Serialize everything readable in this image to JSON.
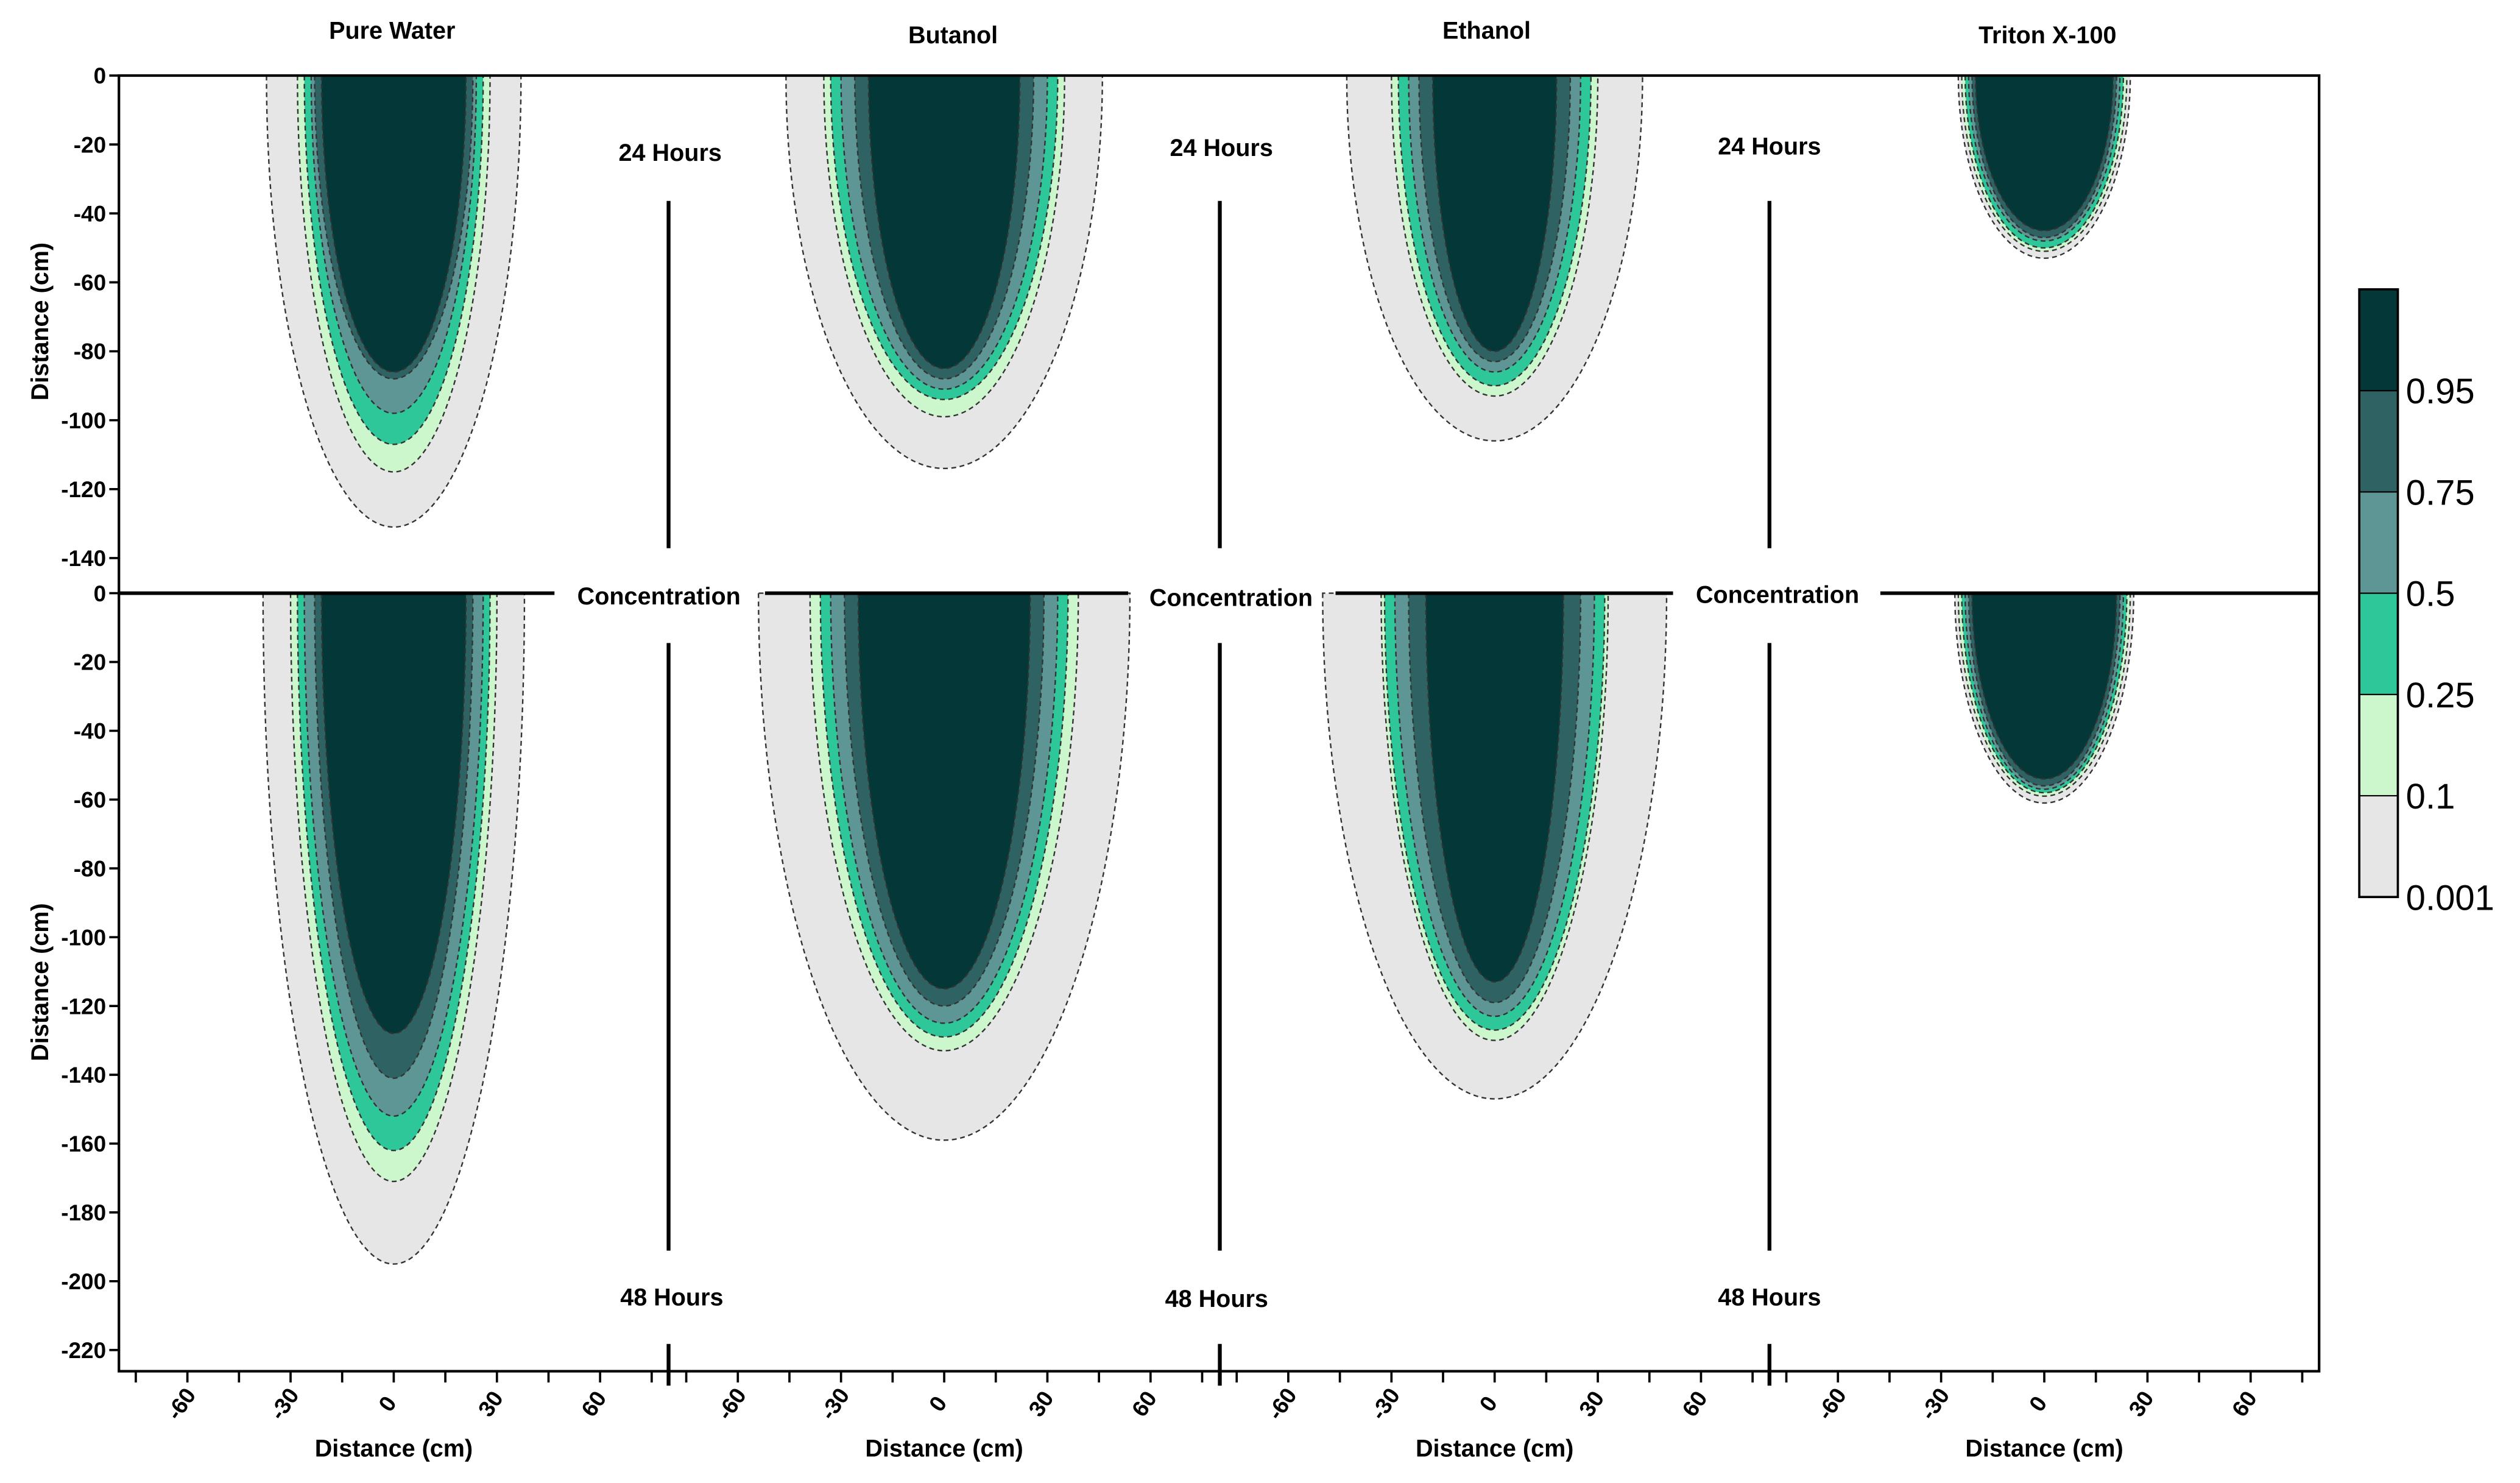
{
  "chart_data": {
    "type": "contour",
    "title": "",
    "columns": [
      "Pure Water",
      "Butanol",
      "Ethanol",
      "Triton X-100"
    ],
    "rows": [
      {
        "label": "24 Hours",
        "ylim": [
          -145,
          0
        ],
        "yticks": [
          0,
          -20,
          -40,
          -60,
          -80,
          -100,
          -120,
          -140
        ]
      },
      {
        "label": "48 Hours",
        "ylim": [
          -225,
          0
        ],
        "yticks": [
          0,
          -20,
          -40,
          -60,
          -80,
          -100,
          -120,
          -140,
          -160,
          -180,
          -200,
          -220
        ]
      }
    ],
    "xlabel": "Distance (cm)",
    "ylabel": "Distance (cm)",
    "xlim": [
      -80,
      80
    ],
    "xticks": [
      -60,
      -30,
      0,
      30,
      60
    ],
    "panel_label": "Concentration",
    "colorbar": {
      "label": "Concentration",
      "levels": [
        0.001,
        0.1,
        0.25,
        0.5,
        0.75,
        0.95
      ],
      "tick_labels": [
        "0.001",
        "0.1",
        "0.25",
        "0.5",
        "0.75",
        "0.95"
      ],
      "colors": [
        "#e6e6e6",
        "#ccf7cc",
        "#2ec79a",
        "#5e9595",
        "#2f6363",
        "#043838"
      ]
    },
    "plumes": [
      {
        "row": "24 Hours",
        "column": "Pure Water",
        "contours": [
          {
            "level": 0.001,
            "half_width": 37,
            "depth": 131
          },
          {
            "level": 0.1,
            "half_width": 28,
            "depth": 115
          },
          {
            "level": 0.25,
            "half_width": 26,
            "depth": 107
          },
          {
            "level": 0.5,
            "half_width": 24,
            "depth": 98
          },
          {
            "level": 0.75,
            "half_width": 23,
            "depth": 88
          },
          {
            "level": 0.95,
            "half_width": 21,
            "depth": 86
          }
        ]
      },
      {
        "row": "24 Hours",
        "column": "Butanol",
        "contours": [
          {
            "level": 0.001,
            "half_width": 46,
            "depth": 114
          },
          {
            "level": 0.1,
            "half_width": 35,
            "depth": 99
          },
          {
            "level": 0.25,
            "half_width": 33,
            "depth": 94
          },
          {
            "level": 0.5,
            "half_width": 30,
            "depth": 91
          },
          {
            "level": 0.75,
            "half_width": 26,
            "depth": 88
          },
          {
            "level": 0.95,
            "half_width": 22,
            "depth": 85
          }
        ]
      },
      {
        "row": "24 Hours",
        "column": "Ethanol",
        "contours": [
          {
            "level": 0.001,
            "half_width": 43,
            "depth": 106
          },
          {
            "level": 0.1,
            "half_width": 30,
            "depth": 93
          },
          {
            "level": 0.25,
            "half_width": 28,
            "depth": 90
          },
          {
            "level": 0.5,
            "half_width": 25,
            "depth": 86
          },
          {
            "level": 0.75,
            "half_width": 22,
            "depth": 83
          },
          {
            "level": 0.95,
            "half_width": 18,
            "depth": 80
          }
        ]
      },
      {
        "row": "24 Hours",
        "column": "Triton X-100",
        "contours": [
          {
            "level": 0.001,
            "half_width": 25,
            "depth": 53
          },
          {
            "level": 0.1,
            "half_width": 24,
            "depth": 51
          },
          {
            "level": 0.25,
            "half_width": 23,
            "depth": 50
          },
          {
            "level": 0.5,
            "half_width": 22,
            "depth": 48
          },
          {
            "level": 0.75,
            "half_width": 21,
            "depth": 47
          },
          {
            "level": 0.95,
            "half_width": 20,
            "depth": 45
          }
        ]
      },
      {
        "row": "48 Hours",
        "column": "Pure Water",
        "contours": [
          {
            "level": 0.001,
            "half_width": 38,
            "depth": 195
          },
          {
            "level": 0.1,
            "half_width": 30,
            "depth": 171
          },
          {
            "level": 0.25,
            "half_width": 28,
            "depth": 162
          },
          {
            "level": 0.5,
            "half_width": 26,
            "depth": 152
          },
          {
            "level": 0.75,
            "half_width": 23,
            "depth": 141
          },
          {
            "level": 0.95,
            "half_width": 21,
            "depth": 128
          }
        ]
      },
      {
        "row": "48 Hours",
        "column": "Butanol",
        "contours": [
          {
            "level": 0.001,
            "half_width": 54,
            "depth": 159
          },
          {
            "level": 0.1,
            "half_width": 39,
            "depth": 133
          },
          {
            "level": 0.25,
            "half_width": 36,
            "depth": 129
          },
          {
            "level": 0.5,
            "half_width": 33,
            "depth": 125
          },
          {
            "level": 0.75,
            "half_width": 29,
            "depth": 120
          },
          {
            "level": 0.95,
            "half_width": 25,
            "depth": 115
          }
        ]
      },
      {
        "row": "48 Hours",
        "column": "Ethanol",
        "contours": [
          {
            "level": 0.001,
            "half_width": 50,
            "depth": 147
          },
          {
            "level": 0.1,
            "half_width": 33,
            "depth": 130
          },
          {
            "level": 0.25,
            "half_width": 32,
            "depth": 127
          },
          {
            "level": 0.5,
            "half_width": 29,
            "depth": 123
          },
          {
            "level": 0.75,
            "half_width": 25,
            "depth": 119
          },
          {
            "level": 0.95,
            "half_width": 20,
            "depth": 113
          }
        ]
      },
      {
        "row": "48 Hours",
        "column": "Triton X-100",
        "contours": [
          {
            "level": 0.001,
            "half_width": 26,
            "depth": 61
          },
          {
            "level": 0.1,
            "half_width": 25,
            "depth": 59
          },
          {
            "level": 0.25,
            "half_width": 24,
            "depth": 58
          },
          {
            "level": 0.5,
            "half_width": 23,
            "depth": 57
          },
          {
            "level": 0.75,
            "half_width": 22,
            "depth": 56
          },
          {
            "level": 0.95,
            "half_width": 21,
            "depth": 54
          }
        ]
      }
    ]
  }
}
